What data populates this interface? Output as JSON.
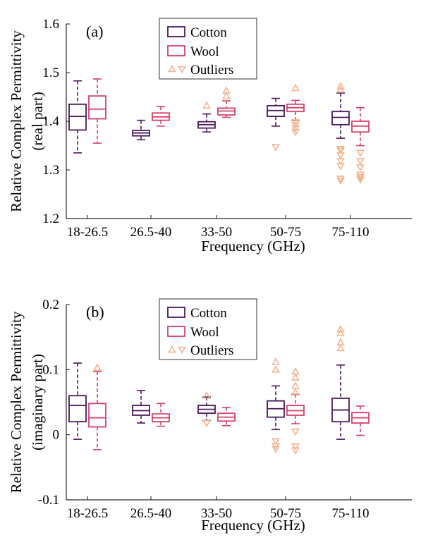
{
  "figure": {
    "xlabel": "Frequency (GHz)",
    "legend": {
      "cotton": "Cotton",
      "wool": "Wool",
      "outliers": "Outliers"
    },
    "colors": {
      "cotton": "#4a1a5e",
      "wool": "#d8406a",
      "outlier": "#f4b48e"
    }
  },
  "chart_data": [
    {
      "type": "box",
      "panel": "(a)",
      "ylabel_lines": [
        "Relative Complex Permittivity",
        "(real part)"
      ],
      "xlabel": "Frequency (GHz)",
      "ylim": [
        1.2,
        1.6
      ],
      "yticks": [
        "1.2",
        "1.3",
        "1.4",
        "1.5",
        "1.6"
      ],
      "categories": [
        "18-26.5",
        "26.5-40",
        "33-50",
        "50-75",
        "75-110"
      ],
      "legend_position": "top-center",
      "series": [
        {
          "name": "Cotton",
          "boxes": [
            {
              "whisker_low": 1.335,
              "q1": 1.382,
              "median": 1.41,
              "q3": 1.435,
              "whisker_high": 1.483,
              "outliers": []
            },
            {
              "whisker_low": 1.362,
              "q1": 1.37,
              "median": 1.376,
              "q3": 1.381,
              "whisker_high": 1.402,
              "outliers": []
            },
            {
              "whisker_low": 1.378,
              "q1": 1.386,
              "median": 1.393,
              "q3": 1.399,
              "whisker_high": 1.415,
              "outliers": [
                1.432
              ]
            },
            {
              "whisker_low": 1.39,
              "q1": 1.41,
              "median": 1.422,
              "q3": 1.432,
              "whisker_high": 1.447,
              "outliers": [
                1.347
              ]
            },
            {
              "whisker_low": 1.365,
              "q1": 1.393,
              "median": 1.408,
              "q3": 1.42,
              "whisker_high": 1.458,
              "outliers": [
                1.472,
                1.465,
                1.343,
                1.34,
                1.33,
                1.318,
                1.308,
                1.282,
                1.278
              ]
            }
          ]
        },
        {
          "name": "Wool",
          "boxes": [
            {
              "whisker_low": 1.355,
              "q1": 1.405,
              "median": 1.425,
              "q3": 1.452,
              "whisker_high": 1.487,
              "outliers": []
            },
            {
              "whisker_low": 1.39,
              "q1": 1.402,
              "median": 1.409,
              "q3": 1.417,
              "whisker_high": 1.43,
              "outliers": []
            },
            {
              "whisker_low": 1.408,
              "q1": 1.413,
              "median": 1.421,
              "q3": 1.427,
              "whisker_high": 1.442,
              "outliers": [
                1.463,
                1.452
              ]
            },
            {
              "whisker_low": 1.402,
              "q1": 1.42,
              "median": 1.428,
              "q3": 1.435,
              "whisker_high": 1.443,
              "outliers": [
                1.468,
                1.398,
                1.392,
                1.385,
                1.378
              ]
            },
            {
              "whisker_low": 1.35,
              "q1": 1.378,
              "median": 1.39,
              "q3": 1.4,
              "whisker_high": 1.428,
              "outliers": [
                1.335,
                1.318,
                1.305,
                1.29,
                1.285,
                1.28
              ]
            }
          ]
        }
      ]
    },
    {
      "type": "box",
      "panel": "(b)",
      "ylabel_lines": [
        "Relative Complex Permittivity",
        "(imaginary part)"
      ],
      "xlabel": "Frequency (GHz)",
      "ylim": [
        -0.1,
        0.2
      ],
      "yticks": [
        "-0.1",
        "0",
        "0.1",
        "0.2"
      ],
      "categories": [
        "18-26.5",
        "26.5-40",
        "33-50",
        "50-75",
        "75-110"
      ],
      "legend_position": "top-center",
      "series": [
        {
          "name": "Cotton",
          "boxes": [
            {
              "whisker_low": -0.007,
              "q1": 0.02,
              "median": 0.045,
              "q3": 0.06,
              "whisker_high": 0.11,
              "outliers": []
            },
            {
              "whisker_low": 0.018,
              "q1": 0.03,
              "median": 0.037,
              "q3": 0.045,
              "whisker_high": 0.068,
              "outliers": []
            },
            {
              "whisker_low": 0.022,
              "q1": 0.033,
              "median": 0.039,
              "q3": 0.045,
              "whisker_high": 0.058,
              "outliers": [
                0.06,
                0.018
              ]
            },
            {
              "whisker_low": 0.008,
              "q1": 0.027,
              "median": 0.04,
              "q3": 0.052,
              "whisker_high": 0.075,
              "outliers": [
                0.112,
                0.1,
                -0.01,
                -0.017,
                -0.022
              ]
            },
            {
              "whisker_low": -0.007,
              "q1": 0.02,
              "median": 0.038,
              "q3": 0.056,
              "whisker_high": 0.107,
              "outliers": [
                0.162,
                0.156,
                0.142,
                0.133
              ]
            }
          ]
        },
        {
          "name": "Wool",
          "boxes": [
            {
              "whisker_low": -0.023,
              "q1": 0.012,
              "median": 0.026,
              "q3": 0.048,
              "whisker_high": 0.097,
              "outliers": [
                0.103
              ]
            },
            {
              "whisker_low": 0.013,
              "q1": 0.02,
              "median": 0.026,
              "q3": 0.032,
              "whisker_high": 0.048,
              "outliers": []
            },
            {
              "whisker_low": 0.014,
              "q1": 0.021,
              "median": 0.027,
              "q3": 0.033,
              "whisker_high": 0.042,
              "outliers": []
            },
            {
              "whisker_low": 0.017,
              "q1": 0.03,
              "median": 0.037,
              "q3": 0.045,
              "whisker_high": 0.062,
              "outliers": [
                0.097,
                0.088,
                0.075,
                0.065,
                0.005,
                -0.018,
                -0.024
              ]
            },
            {
              "whisker_low": -0.001,
              "q1": 0.018,
              "median": 0.026,
              "q3": 0.034,
              "whisker_high": 0.044,
              "outliers": []
            }
          ]
        }
      ]
    }
  ]
}
